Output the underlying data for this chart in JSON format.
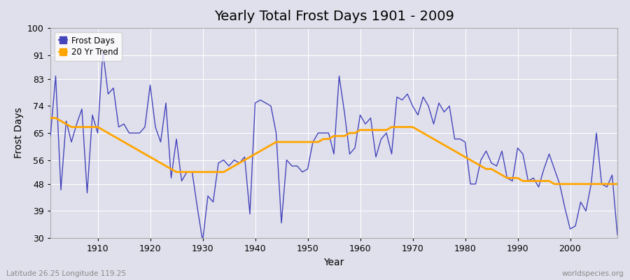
{
  "title": "Yearly Total Frost Days 1901 - 2009",
  "xlabel": "Year",
  "ylabel": "Frost Days",
  "subtitle_left": "Latitude 26.25 Longitude 119.25",
  "subtitle_right": "worldspecies.org",
  "ylim": [
    30,
    100
  ],
  "yticks": [
    30,
    39,
    48,
    56,
    65,
    74,
    83,
    91,
    100
  ],
  "line_color": "#4444bb",
  "trend_color": "#FFA500",
  "bg_color": "#e0e0ec",
  "legend_frost": "Frost Days",
  "legend_trend": "20 Yr Trend",
  "years": [
    1901,
    1902,
    1903,
    1904,
    1905,
    1906,
    1907,
    1908,
    1909,
    1910,
    1911,
    1912,
    1913,
    1914,
    1915,
    1916,
    1917,
    1918,
    1919,
    1920,
    1921,
    1922,
    1923,
    1924,
    1925,
    1926,
    1927,
    1928,
    1929,
    1930,
    1931,
    1932,
    1933,
    1934,
    1935,
    1936,
    1937,
    1938,
    1939,
    1940,
    1941,
    1942,
    1943,
    1944,
    1945,
    1946,
    1947,
    1948,
    1949,
    1950,
    1951,
    1952,
    1953,
    1954,
    1955,
    1956,
    1957,
    1958,
    1959,
    1960,
    1961,
    1962,
    1963,
    1964,
    1965,
    1966,
    1967,
    1968,
    1969,
    1970,
    1971,
    1972,
    1973,
    1974,
    1975,
    1976,
    1977,
    1978,
    1979,
    1980,
    1981,
    1982,
    1983,
    1984,
    1985,
    1986,
    1987,
    1988,
    1989,
    1990,
    1991,
    1992,
    1993,
    1994,
    1995,
    1996,
    1997,
    1998,
    1999,
    2000,
    2001,
    2002,
    2003,
    2004,
    2005,
    2006,
    2007,
    2008,
    2009
  ],
  "frost_days": [
    64,
    84,
    46,
    69,
    62,
    68,
    73,
    45,
    71,
    65,
    92,
    78,
    80,
    67,
    68,
    65,
    65,
    65,
    67,
    81,
    67,
    62,
    75,
    50,
    63,
    49,
    52,
    52,
    40,
    29,
    44,
    42,
    55,
    56,
    54,
    56,
    55,
    57,
    38,
    75,
    76,
    75,
    74,
    65,
    35,
    56,
    54,
    54,
    52,
    53,
    62,
    65,
    65,
    65,
    58,
    84,
    72,
    58,
    60,
    71,
    68,
    70,
    57,
    63,
    65,
    58,
    77,
    76,
    78,
    74,
    71,
    77,
    74,
    68,
    75,
    72,
    74,
    63,
    63,
    62,
    48,
    48,
    56,
    59,
    55,
    54,
    59,
    50,
    49,
    60,
    58,
    49,
    50,
    47,
    53,
    58,
    53,
    48,
    40,
    33,
    34,
    42,
    39,
    48,
    65,
    48,
    47,
    51,
    31
  ],
  "trend_values": [
    70,
    70,
    69,
    68,
    67,
    67,
    67,
    67,
    67,
    67,
    66,
    65,
    64,
    63,
    62,
    61,
    60,
    59,
    58,
    57,
    56,
    55,
    54,
    53,
    52,
    52,
    52,
    52,
    52,
    52,
    52,
    52,
    52,
    52,
    53,
    54,
    55,
    56,
    57,
    58,
    59,
    60,
    61,
    62,
    62,
    62,
    62,
    62,
    62,
    62,
    62,
    62,
    63,
    63,
    64,
    64,
    64,
    65,
    65,
    66,
    66,
    66,
    66,
    66,
    66,
    67,
    67,
    67,
    67,
    67,
    66,
    65,
    64,
    63,
    62,
    61,
    60,
    59,
    58,
    57,
    56,
    55,
    54,
    53,
    53,
    52,
    51,
    50,
    50,
    50,
    49,
    49,
    49,
    49,
    49,
    49,
    48,
    48,
    48,
    48,
    48,
    48,
    48,
    48,
    48,
    48,
    48,
    48,
    48
  ],
  "xticks": [
    1910,
    1920,
    1930,
    1940,
    1950,
    1960,
    1970,
    1980,
    1990,
    2000
  ]
}
